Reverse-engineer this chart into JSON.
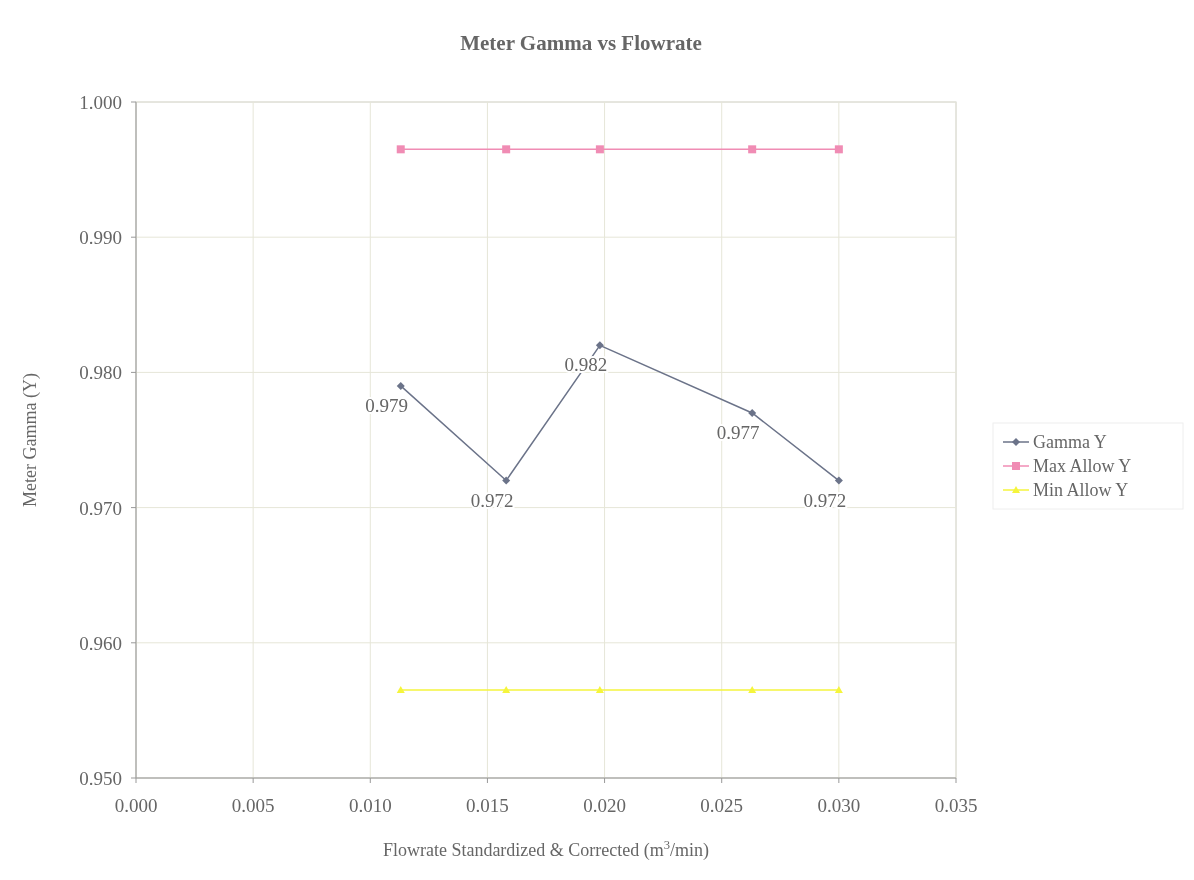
{
  "chart_data": {
    "type": "line",
    "title": "Meter Gamma vs Flowrate",
    "xlabel": "Flowrate Standardized & Corrected (m$^{3}$/min)",
    "ylabel": "Meter Gamma (Y)",
    "x": [
      0.0113,
      0.0158,
      0.0198,
      0.0263,
      0.03
    ],
    "series": [
      {
        "name": "Gamma Y",
        "color": "#6b7389",
        "marker": "diamond",
        "values": [
          0.979,
          0.972,
          0.982,
          0.977,
          0.972
        ],
        "value_labels": [
          "0.979",
          "0.972",
          "0.982",
          "0.977",
          "0.972"
        ]
      },
      {
        "name": "Max Allow Y",
        "color": "#f08cb4",
        "marker": "square",
        "values": [
          0.9965,
          0.9965,
          0.9965,
          0.9965,
          0.9965
        ]
      },
      {
        "name": "Min Allow Y",
        "color": "#f5f53c",
        "marker": "triangle",
        "values": [
          0.9565,
          0.9565,
          0.9565,
          0.9565,
          0.9565
        ]
      }
    ],
    "xlim": [
      0,
      0.035
    ],
    "xticks": [
      {
        "value": 0,
        "label": "0.000"
      },
      0.005,
      {
        "value": 0.01,
        "label": "0.010"
      },
      0.015,
      {
        "value": 0.02,
        "label": "0.020"
      },
      0.025,
      {
        "value": 0.03,
        "label": "0.030"
      },
      0.035
    ],
    "ylim": [
      0.95,
      1.0
    ],
    "yticks": [
      {
        "value": 0.95,
        "label": "0.950"
      },
      {
        "value": 0.96,
        "label": "0.960"
      },
      {
        "value": 0.97,
        "label": "0.970"
      },
      {
        "value": 0.98,
        "label": "0.980"
      },
      {
        "value": 0.99,
        "label": "0.990"
      },
      {
        "value": 1.0,
        "label": "1.000"
      }
    ],
    "grid": true,
    "legend": "right",
    "line_style": "solid"
  }
}
